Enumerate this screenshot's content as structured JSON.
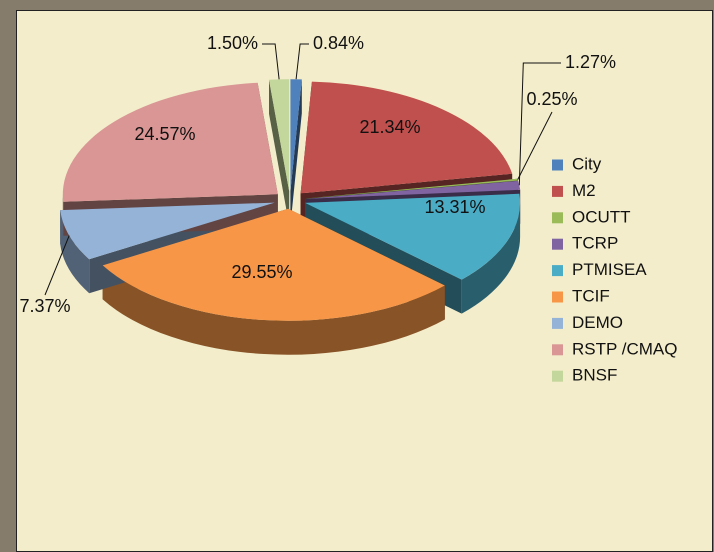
{
  "chart_data": {
    "type": "pie",
    "categories": [
      "City",
      "M2",
      "OCUTT",
      "TCRP",
      "PTMISEA",
      "TCIF",
      "DEMO",
      "RSTP /CMAQ",
      "BNSF"
    ],
    "values": [
      0.84,
      21.34,
      0.25,
      1.27,
      13.31,
      29.55,
      7.37,
      24.57,
      1.5
    ],
    "value_labels": [
      "0.84%",
      "21.34%",
      "0.25%",
      "1.27%",
      "13.31%",
      "29.55%",
      "7.37%",
      "24.57%",
      "1.50%"
    ],
    "colors": [
      "#4f81bd",
      "#c0504d",
      "#9bbb59",
      "#8064a2",
      "#4bacc6",
      "#f79646",
      "#95b3d7",
      "#d99694",
      "#c3d69b"
    ],
    "legend": "right"
  }
}
